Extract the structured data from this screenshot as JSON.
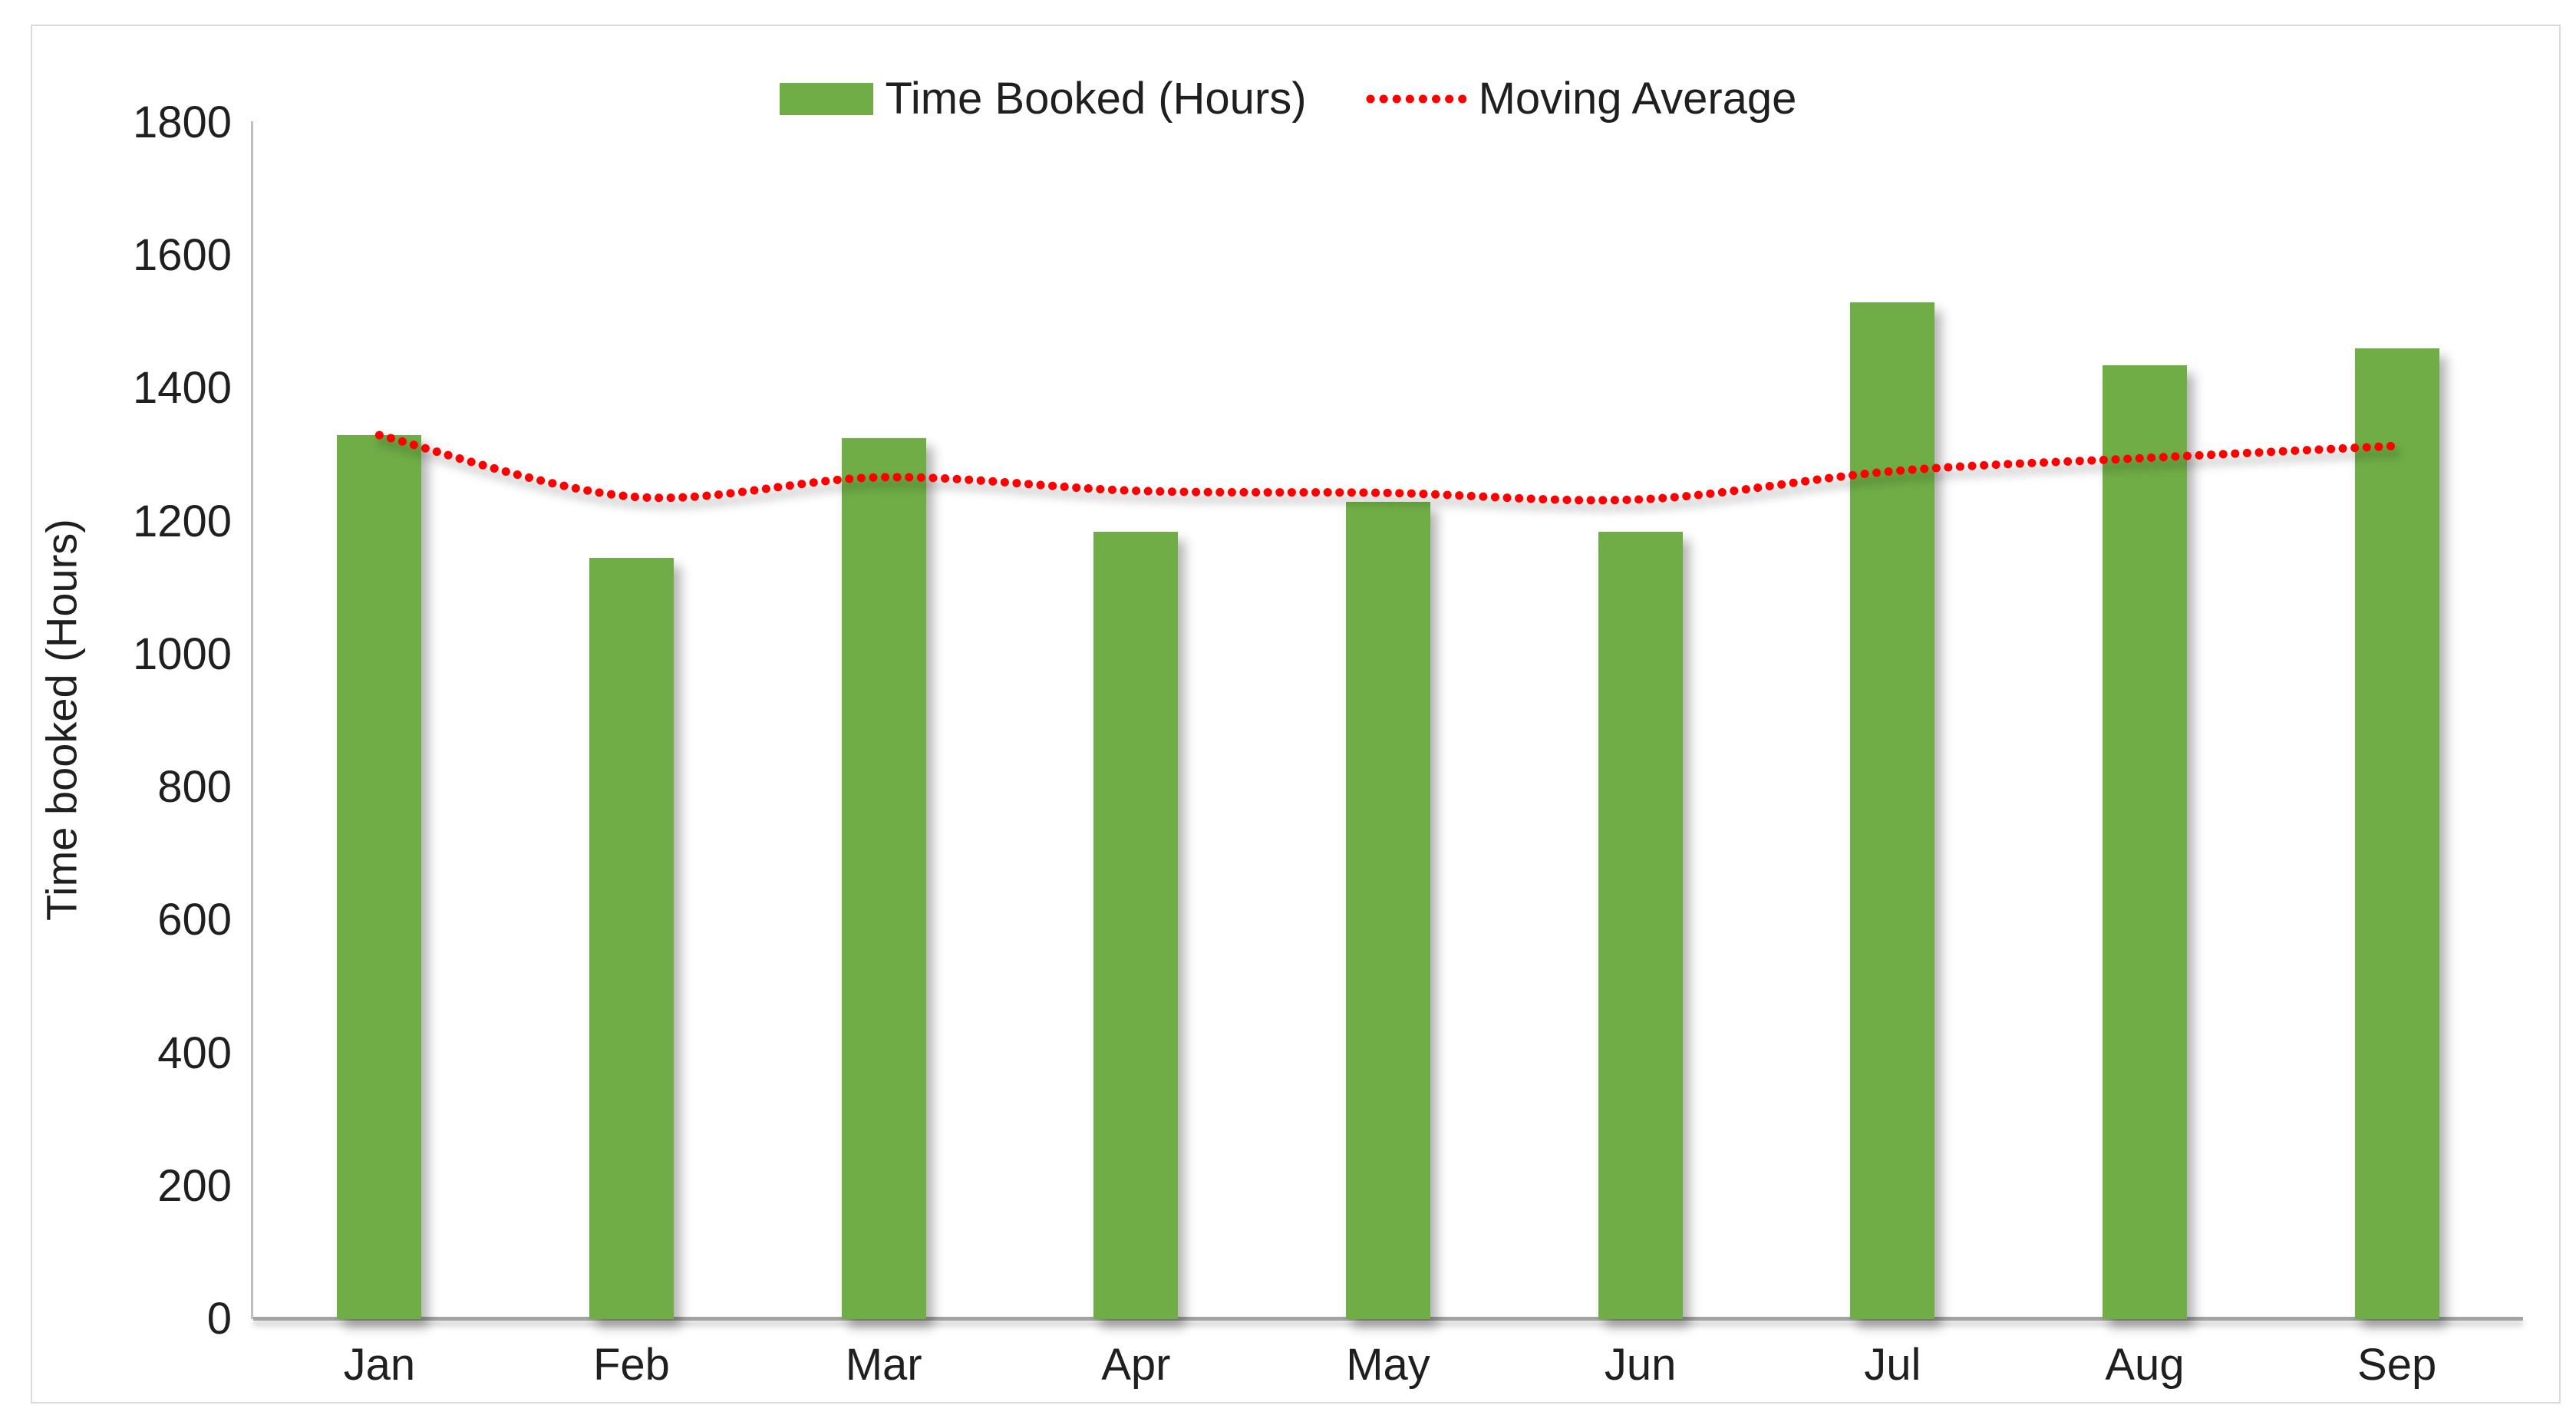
{
  "chart_data": {
    "type": "bar",
    "combo": "bar + dotted line overlay",
    "title": "",
    "xlabel": "",
    "ylabel": "Time booked (Hours)",
    "categories": [
      "Jan",
      "Feb",
      "Mar",
      "Apr",
      "May",
      "Jun",
      "Jul",
      "Aug",
      "Sep"
    ],
    "series": [
      {
        "name": "Time Booked (Hours)",
        "type": "bar",
        "color": "#70AD47",
        "values": [
          1330,
          1145,
          1325,
          1185,
          1230,
          1185,
          1530,
          1435,
          1460
        ]
      },
      {
        "name": "Moving Average",
        "type": "line",
        "line_style": "dotted",
        "color": "#FF0000",
        "values": [
          1330,
          1237.5,
          1266.7,
          1246.3,
          1243,
          1233.3,
          1275.7,
          1295.6,
          1313.9
        ]
      }
    ],
    "ylim": [
      0,
      1800
    ],
    "ytick_step": 200,
    "ytick_labels": [
      "0",
      "200",
      "400",
      "600",
      "800",
      "1000",
      "1200",
      "1400",
      "1600",
      "1800"
    ],
    "grid": false,
    "legend_position": "top-center",
    "axis_line_color": "#BFBFBF",
    "text_color": "#1F1F1F",
    "border_color": "#DADADA",
    "background_color": "#FFFFFF"
  }
}
